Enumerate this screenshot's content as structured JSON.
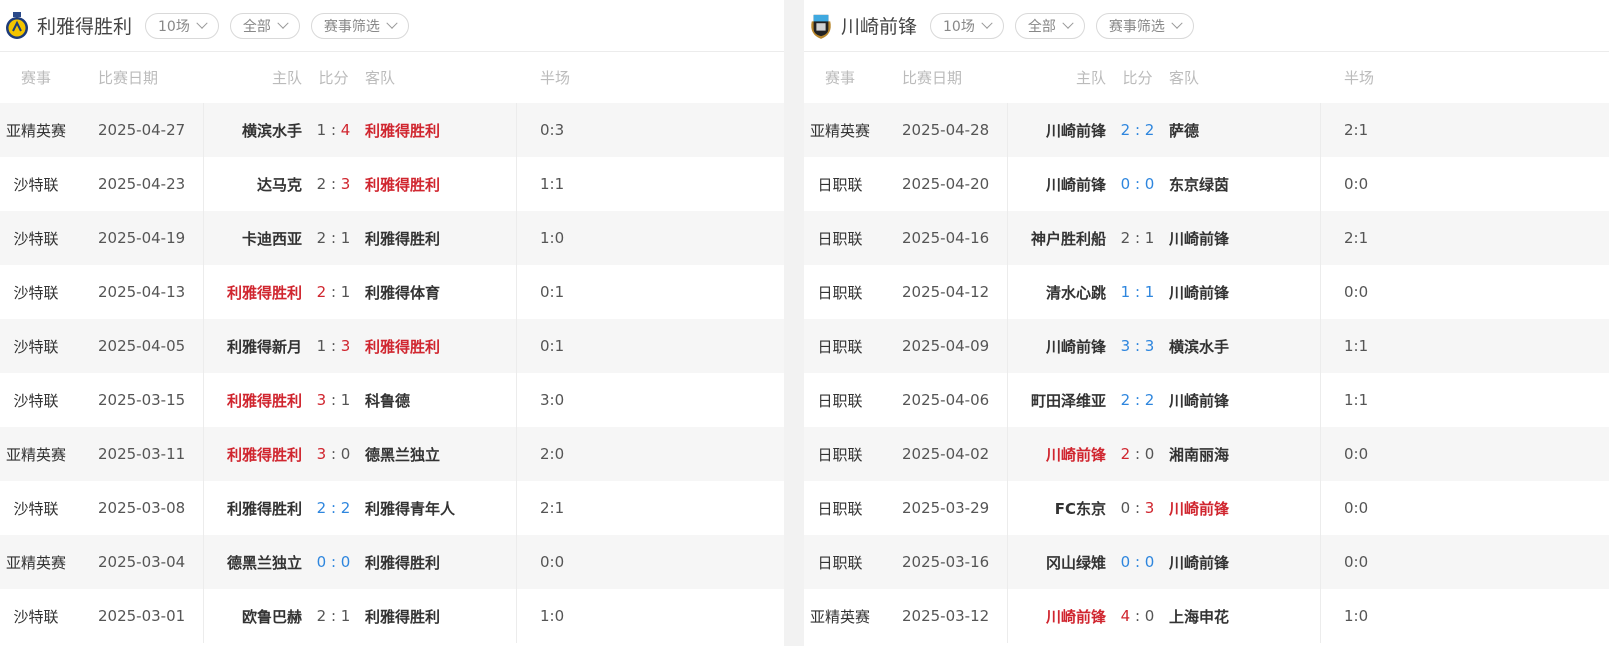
{
  "colors": {
    "win": "#d0262f",
    "draw": "#2e86de",
    "text": "#333333",
    "muted": "#bbbbbb"
  },
  "headers": {
    "event": "赛事",
    "date": "比赛日期",
    "home": "主队",
    "score": "比分",
    "away": "客队",
    "half": "半场"
  },
  "panels": [
    {
      "team": "利雅得胜利",
      "logo_icon": "al-nassr-crest-icon",
      "filters": [
        "10场",
        "全部",
        "赛事筛选"
      ],
      "rows": [
        {
          "event": "亚精英赛",
          "date": "2025-04-27",
          "home": "横滨水手",
          "hs": "1",
          "as": "4",
          "away": "利雅得胜利",
          "half": "0:3",
          "result": "win-away"
        },
        {
          "event": "沙特联",
          "date": "2025-04-23",
          "home": "达马克",
          "hs": "2",
          "as": "3",
          "away": "利雅得胜利",
          "half": "1:1",
          "result": "win-away"
        },
        {
          "event": "沙特联",
          "date": "2025-04-19",
          "home": "卡迪西亚",
          "hs": "2",
          "as": "1",
          "away": "利雅得胜利",
          "half": "1:0",
          "result": "loss"
        },
        {
          "event": "沙特联",
          "date": "2025-04-13",
          "home": "利雅得胜利",
          "hs": "2",
          "as": "1",
          "away": "利雅得体育",
          "half": "0:1",
          "result": "win-home"
        },
        {
          "event": "沙特联",
          "date": "2025-04-05",
          "home": "利雅得新月",
          "hs": "1",
          "as": "3",
          "away": "利雅得胜利",
          "half": "0:1",
          "result": "win-away"
        },
        {
          "event": "沙特联",
          "date": "2025-03-15",
          "home": "利雅得胜利",
          "hs": "3",
          "as": "1",
          "away": "科鲁德",
          "half": "3:0",
          "result": "win-home"
        },
        {
          "event": "亚精英赛",
          "date": "2025-03-11",
          "home": "利雅得胜利",
          "hs": "3",
          "as": "0",
          "away": "德黑兰独立",
          "half": "2:0",
          "result": "win-home"
        },
        {
          "event": "沙特联",
          "date": "2025-03-08",
          "home": "利雅得胜利",
          "hs": "2",
          "as": "2",
          "away": "利雅得青年人",
          "half": "2:1",
          "result": "draw"
        },
        {
          "event": "亚精英赛",
          "date": "2025-03-04",
          "home": "德黑兰独立",
          "hs": "0",
          "as": "0",
          "away": "利雅得胜利",
          "half": "0:0",
          "result": "draw"
        },
        {
          "event": "沙特联",
          "date": "2025-03-01",
          "home": "欧鲁巴赫",
          "hs": "2",
          "as": "1",
          "away": "利雅得胜利",
          "half": "1:0",
          "result": "loss"
        }
      ]
    },
    {
      "team": "川崎前锋",
      "logo_icon": "kawasaki-frontale-crest-icon",
      "filters": [
        "10场",
        "全部",
        "赛事筛选"
      ],
      "rows": [
        {
          "event": "亚精英赛",
          "date": "2025-04-28",
          "home": "川崎前锋",
          "hs": "2",
          "as": "2",
          "away": "萨德",
          "half": "2:1",
          "result": "draw"
        },
        {
          "event": "日职联",
          "date": "2025-04-20",
          "home": "川崎前锋",
          "hs": "0",
          "as": "0",
          "away": "东京绿茵",
          "half": "0:0",
          "result": "draw"
        },
        {
          "event": "日职联",
          "date": "2025-04-16",
          "home": "神户胜利船",
          "hs": "2",
          "as": "1",
          "away": "川崎前锋",
          "half": "2:1",
          "result": "loss"
        },
        {
          "event": "日职联",
          "date": "2025-04-12",
          "home": "清水心跳",
          "hs": "1",
          "as": "1",
          "away": "川崎前锋",
          "half": "0:0",
          "result": "draw"
        },
        {
          "event": "日职联",
          "date": "2025-04-09",
          "home": "川崎前锋",
          "hs": "3",
          "as": "3",
          "away": "横滨水手",
          "half": "1:1",
          "result": "draw"
        },
        {
          "event": "日职联",
          "date": "2025-04-06",
          "home": "町田泽维亚",
          "hs": "2",
          "as": "2",
          "away": "川崎前锋",
          "half": "1:1",
          "result": "draw"
        },
        {
          "event": "日职联",
          "date": "2025-04-02",
          "home": "川崎前锋",
          "hs": "2",
          "as": "0",
          "away": "湘南丽海",
          "half": "0:0",
          "result": "win-home"
        },
        {
          "event": "日职联",
          "date": "2025-03-29",
          "home": "FC东京",
          "hs": "0",
          "as": "3",
          "away": "川崎前锋",
          "half": "0:0",
          "result": "win-away"
        },
        {
          "event": "日职联",
          "date": "2025-03-16",
          "home": "冈山绿雉",
          "hs": "0",
          "as": "0",
          "away": "川崎前锋",
          "half": "0:0",
          "result": "draw"
        },
        {
          "event": "亚精英赛",
          "date": "2025-03-12",
          "home": "川崎前锋",
          "hs": "4",
          "as": "0",
          "away": "上海申花",
          "half": "1:0",
          "result": "win-home"
        }
      ]
    }
  ]
}
